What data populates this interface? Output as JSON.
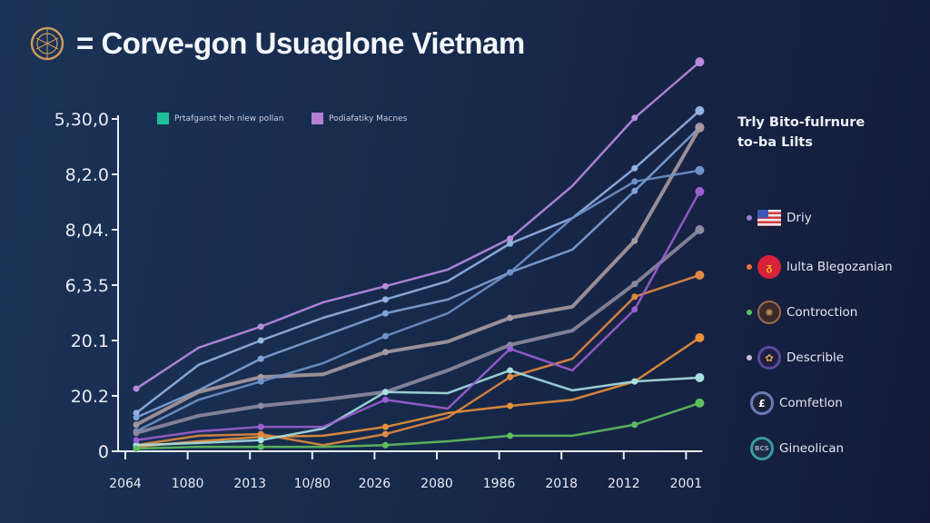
{
  "title": "= Corve-gon Usuaglone Vietnam",
  "icons": {
    "logo": "golden-globe-emblem"
  },
  "legend_top": [
    {
      "label": "Prtafganst heh nlew pollan",
      "color": "#1fbf9a"
    },
    {
      "label": "Podiafatiky Macnes",
      "color": "#b57fd6"
    }
  ],
  "side_legend": {
    "title_line1": "Trly Bito-fulrnure",
    "title_line2": "to-ba Lilts",
    "items": [
      {
        "label": "Driy",
        "dot": "#9a7fd6",
        "icon": "us-flag-icon"
      },
      {
        "label": "lulta Blegozanian",
        "dot": "#e8733a",
        "icon": "red-emblem-icon"
      },
      {
        "label": "Controction",
        "dot": "#5fbf5f",
        "icon": "bronze-globe-icon"
      },
      {
        "label": "Describle",
        "dot": "#c9bfd9",
        "icon": "purple-coin-icon"
      },
      {
        "label": "Comfetlon",
        "dot": "",
        "icon": "blue-coin-icon"
      },
      {
        "label": "Gineolican",
        "dot": "",
        "icon": "teal-coin-icon"
      }
    ]
  },
  "chart_data": {
    "type": "line",
    "title": "= Corve-gon Usuaglone Vietnam",
    "x": [
      "2064",
      "1080",
      "2013",
      "10/80",
      "2026",
      "2080",
      "1986",
      "2018",
      "2012",
      "2001"
    ],
    "y_tick_labels": [
      "0",
      "20.2",
      "20.1",
      "6,3.5",
      "8,04.",
      "8,2.0",
      "5,30,0"
    ],
    "ylim": [
      0,
      7.2
    ],
    "grid": false,
    "legend": "top-left",
    "series": [
      {
        "color": "#b98be0",
        "values": [
          1.13,
          1.87,
          2.25,
          2.69,
          2.98,
          3.28,
          3.84,
          4.79,
          6.02,
          7.03
        ]
      },
      {
        "color": "#93b3e2",
        "values": [
          0.69,
          1.56,
          2.0,
          2.41,
          2.74,
          3.07,
          3.75,
          4.21,
          5.11,
          6.15
        ]
      },
      {
        "color": "#7fa3d6",
        "values": [
          0.61,
          1.1,
          1.67,
          2.08,
          2.49,
          2.74,
          3.23,
          3.64,
          4.7,
          5.85
        ]
      },
      {
        "color": "#a89a9f",
        "values": [
          0.48,
          1.07,
          1.34,
          1.39,
          1.79,
          1.98,
          2.41,
          2.61,
          3.8,
          5.84
        ]
      },
      {
        "color": "#6f92c8",
        "values": [
          0.36,
          0.93,
          1.26,
          1.59,
          2.08,
          2.49,
          3.23,
          4.21,
          4.87,
          5.07
        ]
      },
      {
        "color": "#8d8a9e",
        "values": [
          0.33,
          0.64,
          0.82,
          0.93,
          1.07,
          1.46,
          1.92,
          2.18,
          3.02,
          4.0
        ]
      },
      {
        "color": "#e8913a",
        "values": [
          0.08,
          0.18,
          0.26,
          0.28,
          0.44,
          0.69,
          0.82,
          0.93,
          1.26,
          2.05
        ]
      },
      {
        "color": "#e08a40",
        "values": [
          0.11,
          0.28,
          0.31,
          0.11,
          0.31,
          0.61,
          1.34,
          1.67,
          2.79,
          3.18
        ]
      },
      {
        "color": "#a6e0e0",
        "values": [
          0.11,
          0.15,
          0.2,
          0.41,
          1.07,
          1.05,
          1.46,
          1.1,
          1.26,
          1.33
        ]
      },
      {
        "color": "#5fbf5f",
        "values": [
          0.05,
          0.08,
          0.08,
          0.08,
          0.11,
          0.18,
          0.28,
          0.28,
          0.48,
          0.87
        ]
      },
      {
        "color": "#9a5fd0",
        "values": [
          0.2,
          0.36,
          0.44,
          0.44,
          0.93,
          0.77,
          1.85,
          1.46,
          2.56,
          4.69
        ]
      }
    ]
  }
}
